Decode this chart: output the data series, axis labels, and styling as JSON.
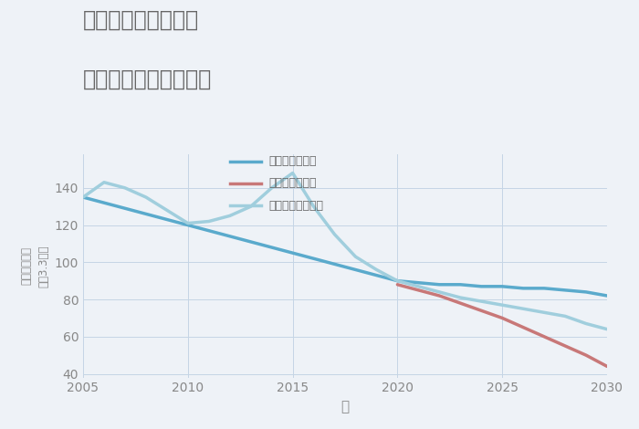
{
  "title_line1": "兵庫県赤穂市尾崎の",
  "title_line2": "中古戸建ての価格推移",
  "xlabel": "年",
  "ylabel_top": "単価（万円）",
  "ylabel_bottom": "平（3.3㎡）",
  "background_color": "#eef2f7",
  "plot_background_color": "#eef2f7",
  "xlim": [
    2005,
    2030
  ],
  "ylim": [
    38,
    158
  ],
  "xticks": [
    2005,
    2010,
    2015,
    2020,
    2025,
    2030
  ],
  "yticks": [
    40,
    60,
    80,
    100,
    120,
    140
  ],
  "grid_color": "#c5d5e5",
  "series": [
    {
      "label": "グッドシナリオ",
      "color": "#5aaacc",
      "linewidth": 2.5,
      "x": [
        2005,
        2020,
        2021,
        2022,
        2023,
        2024,
        2025,
        2026,
        2027,
        2028,
        2029,
        2030
      ],
      "y": [
        135,
        90,
        89,
        88,
        88,
        87,
        87,
        86,
        86,
        85,
        84,
        82
      ]
    },
    {
      "label": "バッドシナリオ",
      "color": "#c87878",
      "linewidth": 2.5,
      "x": [
        2020,
        2021,
        2022,
        2023,
        2024,
        2025,
        2026,
        2027,
        2028,
        2029,
        2030
      ],
      "y": [
        88,
        85,
        82,
        78,
        74,
        70,
        65,
        60,
        55,
        50,
        44
      ]
    },
    {
      "label": "ノーマルシナリオ",
      "color": "#a0cedd",
      "linewidth": 2.5,
      "x": [
        2005,
        2006,
        2007,
        2008,
        2009,
        2010,
        2011,
        2012,
        2013,
        2014,
        2015,
        2016,
        2017,
        2018,
        2019,
        2020,
        2021,
        2022,
        2023,
        2024,
        2025,
        2026,
        2027,
        2028,
        2029,
        2030
      ],
      "y": [
        135,
        143,
        140,
        135,
        128,
        121,
        122,
        125,
        130,
        140,
        148,
        130,
        115,
        103,
        96,
        90,
        87,
        84,
        81,
        79,
        77,
        75,
        73,
        71,
        67,
        64
      ]
    }
  ],
  "legend_labels": [
    "グッドシナリオ",
    "バッドシナリオ",
    "ノーマルシナリオ"
  ],
  "legend_colors": [
    "#5aaacc",
    "#c87878",
    "#a0cedd"
  ],
  "title_color": "#666666",
  "axis_color": "#888888",
  "tick_color": "#888888",
  "title_fontsize": 17,
  "legend_fontsize": 9,
  "tick_fontsize": 10
}
